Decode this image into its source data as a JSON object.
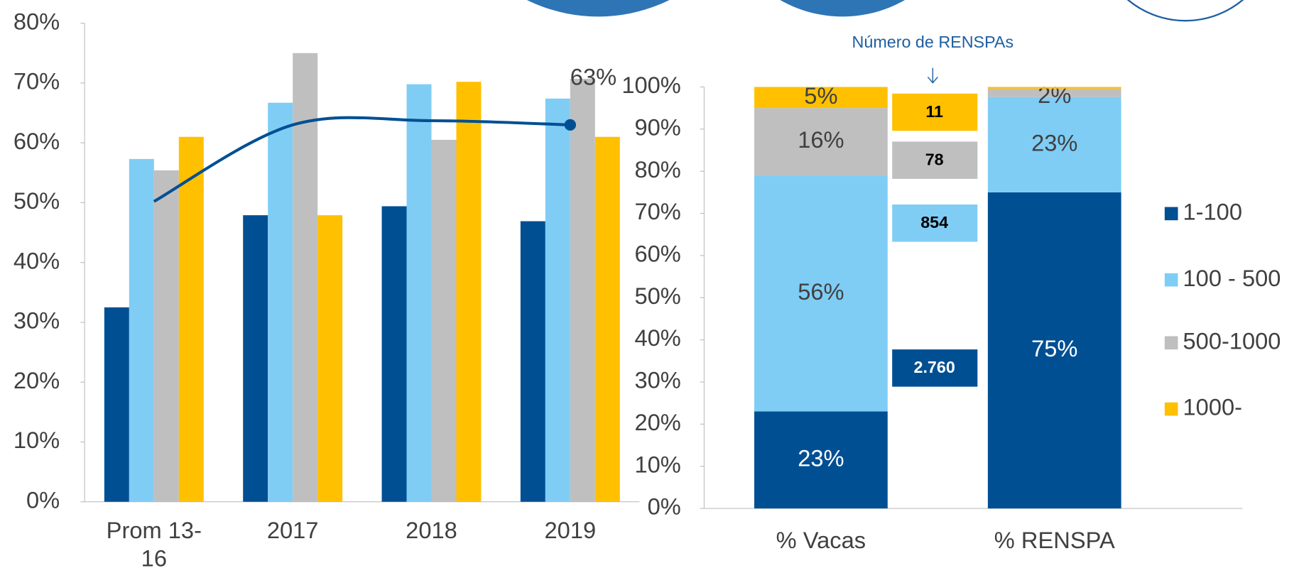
{
  "chart_data": [
    {
      "type": "bar",
      "categories": [
        "Prom 13-16",
        "2017",
        "2018",
        "2019"
      ],
      "series": [
        {
          "color": "#004f93",
          "values": [
            32.5,
            47.9,
            49.4,
            46.9
          ]
        },
        {
          "color": "#7fcdf5",
          "values": [
            57.3,
            66.7,
            69.8,
            67.4
          ]
        },
        {
          "color": "#bfbfbf",
          "values": [
            55.4,
            75,
            60.5,
            70.7
          ]
        },
        {
          "color": "#ffc000",
          "values": [
            61,
            47.9,
            70.2,
            61
          ]
        }
      ],
      "line": {
        "color": "#004f93",
        "values": [
          50.2,
          63,
          63.7,
          63
        ],
        "value_labels": [
          null,
          null,
          null,
          "63%"
        ]
      },
      "ylim": [
        0,
        80
      ],
      "yticks": [
        {
          "value": 0,
          "label": "0%"
        },
        {
          "value": 10,
          "label": "10%"
        },
        {
          "value": 20,
          "label": "20%"
        },
        {
          "value": 30,
          "label": "30%"
        },
        {
          "value": 40,
          "label": "40%"
        },
        {
          "value": 50,
          "label": "50%"
        },
        {
          "value": 60,
          "label": "60%"
        },
        {
          "value": 70,
          "label": "70%"
        },
        {
          "value": 80,
          "label": "80%"
        }
      ]
    },
    {
      "type": "stacked_bar",
      "categories": [
        "% Vacas",
        "% RENSPA"
      ],
      "series": [
        {
          "name": "1-100",
          "color": "#004f93",
          "values": [
            23,
            75
          ],
          "value_labels": [
            "23%",
            "75%"
          ]
        },
        {
          "name": "100 - 500",
          "color": "#7fcdf5",
          "values": [
            56,
            22.6
          ],
          "value_labels": [
            "56%",
            "23%"
          ]
        },
        {
          "name": "500-1000",
          "color": "#bfbfbf",
          "values": [
            16,
            2
          ],
          "value_labels": [
            "16%",
            "2%"
          ]
        },
        {
          "name": "1000-",
          "color": "#ffc000",
          "values": [
            5,
            0.4
          ],
          "value_labels": [
            "5%",
            null
          ]
        }
      ],
      "ylim": [
        0,
        100
      ],
      "yticks": [
        {
          "value": 0,
          "label": "0%"
        },
        {
          "value": 10,
          "label": "10%"
        },
        {
          "value": 20,
          "label": "20%"
        },
        {
          "value": 30,
          "label": "30%"
        },
        {
          "value": 40,
          "label": "40%"
        },
        {
          "value": 50,
          "label": "50%"
        },
        {
          "value": 60,
          "label": "60%"
        },
        {
          "value": 70,
          "label": "70%"
        },
        {
          "value": 80,
          "label": "80%"
        },
        {
          "value": 90,
          "label": "90%"
        },
        {
          "value": 100,
          "label": "100%"
        }
      ],
      "annotation": "Número de RENSPAs",
      "counts": [
        {
          "label": "11",
          "color": "#ffc000"
        },
        {
          "label": "78",
          "color": "#bfbfbf"
        },
        {
          "label": "854",
          "color": "#7fcdf5"
        },
        {
          "label": "2.760",
          "color": "#004f93"
        }
      ]
    }
  ]
}
